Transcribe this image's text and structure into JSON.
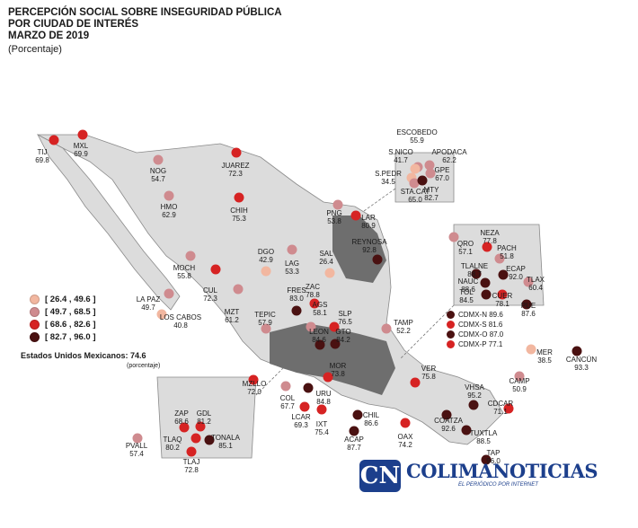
{
  "header": {
    "title_line1": "PERCEPCIÓN SOCIAL SOBRE INSEGURIDAD PÚBLICA",
    "title_line2": "POR CIUDAD DE INTERÉS",
    "title_line3": "MARZO DE 2019",
    "unit": "(Porcentaje)"
  },
  "legend": {
    "items": [
      {
        "label": "[ 26.4 , 49.6 ]",
        "color": "#f2b7a0"
      },
      {
        "label": "[ 49.7 , 68.5 ]",
        "color": "#cf8b8f"
      },
      {
        "label": "[ 68.6 , 82.6 ]",
        "color": "#d62323"
      },
      {
        "label": "[ 82.7 , 96.0 ]",
        "color": "#4a1111"
      }
    ]
  },
  "national": {
    "label": "Estados Unidos Mexicanos: 74.6",
    "unit": "(porcentaje)"
  },
  "cdmx_legend": [
    {
      "label": "CDMX-N",
      "value": "89.6"
    },
    {
      "label": "CDMX-S",
      "value": "81.6"
    },
    {
      "label": "CDMX-O",
      "value": "87.0"
    },
    {
      "label": "CDMX-P",
      "value": "77.1"
    }
  ],
  "cities": [
    {
      "code": "TIJ",
      "value": "69.8"
    },
    {
      "code": "MXL",
      "value": "69.9"
    },
    {
      "code": "NOG",
      "value": "54.7"
    },
    {
      "code": "JUAREZ",
      "value": "72.3"
    },
    {
      "code": "HMO",
      "value": "62.9"
    },
    {
      "code": "CHIH",
      "value": "75.3"
    },
    {
      "code": "ESCOBEDO",
      "value": "55.9"
    },
    {
      "code": "S.NICO",
      "value": "41.7"
    },
    {
      "code": "APODACA",
      "value": "62.2"
    },
    {
      "code": "S.PEDR",
      "value": "34.5"
    },
    {
      "code": "GPE",
      "value": "67.0"
    },
    {
      "code": "STA.CAT",
      "value": "65.0"
    },
    {
      "code": "MTY",
      "value": "82.7"
    },
    {
      "code": "PNG",
      "value": "53.8"
    },
    {
      "code": "LAR",
      "value": "80.9"
    },
    {
      "code": "REYNOSA",
      "value": "92.8"
    },
    {
      "code": "LAG",
      "value": "53.3"
    },
    {
      "code": "SAL",
      "value": "26.4"
    },
    {
      "code": "MOCH",
      "value": "55.8"
    },
    {
      "code": "DGO",
      "value": "42.9"
    },
    {
      "code": "LA PAZ",
      "value": "49.7"
    },
    {
      "code": "CUL",
      "value": "72.3"
    },
    {
      "code": "LOS CABOS",
      "value": "40.8"
    },
    {
      "code": "MZT",
      "value": "61.2"
    },
    {
      "code": "FRES",
      "value": "83.0"
    },
    {
      "code": "ZAC",
      "value": "78.8"
    },
    {
      "code": "AGS",
      "value": "58.1"
    },
    {
      "code": "TEPIC",
      "value": "57.9"
    },
    {
      "code": "SLP",
      "value": "76.5"
    },
    {
      "code": "TAMP",
      "value": "52.2"
    },
    {
      "code": "LEON",
      "value": "84.6"
    },
    {
      "code": "GTO",
      "value": "84.2"
    },
    {
      "code": "MOR",
      "value": "73.8"
    },
    {
      "code": "MZLLO",
      "value": "72.0"
    },
    {
      "code": "COL",
      "value": "67.7"
    },
    {
      "code": "URU",
      "value": "84.8"
    },
    {
      "code": "VER",
      "value": "75.8"
    },
    {
      "code": "LCAR",
      "value": "69.3"
    },
    {
      "code": "IXT",
      "value": "75.4"
    },
    {
      "code": "CHIL",
      "value": "86.6"
    },
    {
      "code": "ACAP",
      "value": "87.7"
    },
    {
      "code": "OAX",
      "value": "74.2"
    },
    {
      "code": "COATZA",
      "value": "92.6"
    },
    {
      "code": "VHSA",
      "value": "95.2"
    },
    {
      "code": "CDCAR",
      "value": "71.1"
    },
    {
      "code": "CAMP",
      "value": "50.9"
    },
    {
      "code": "MER",
      "value": "38.5"
    },
    {
      "code": "CANCÚN",
      "value": "93.3"
    },
    {
      "code": "TUXTLA",
      "value": "88.5"
    },
    {
      "code": "TAP",
      "value": "96.0"
    },
    {
      "code": "ZAP",
      "value": "68.6"
    },
    {
      "code": "GDL",
      "value": "81.2"
    },
    {
      "code": "TONALA",
      "value": "85.1"
    },
    {
      "code": "PVALL",
      "value": "57.4"
    },
    {
      "code": "TLAQ",
      "value": "80.2"
    },
    {
      "code": "TLAJ",
      "value": "72.8"
    },
    {
      "code": "QRO",
      "value": "57.1"
    },
    {
      "code": "NEZA",
      "value": "77.8"
    },
    {
      "code": "PACH",
      "value": "51.8"
    },
    {
      "code": "TLALNE",
      "value": "88.7"
    },
    {
      "code": "ECAP",
      "value": "92.0"
    },
    {
      "code": "NAUC",
      "value": "88.6"
    },
    {
      "code": "TLAX",
      "value": "60.4"
    },
    {
      "code": "TOL",
      "value": "84.5"
    },
    {
      "code": "CUER",
      "value": "78.1"
    },
    {
      "code": "PUE",
      "value": "87.6"
    }
  ],
  "logo": {
    "mark": "CN",
    "name": "COLIMANOTICIAS",
    "tagline": "EL PERIÓDICO POR INTERNET"
  }
}
